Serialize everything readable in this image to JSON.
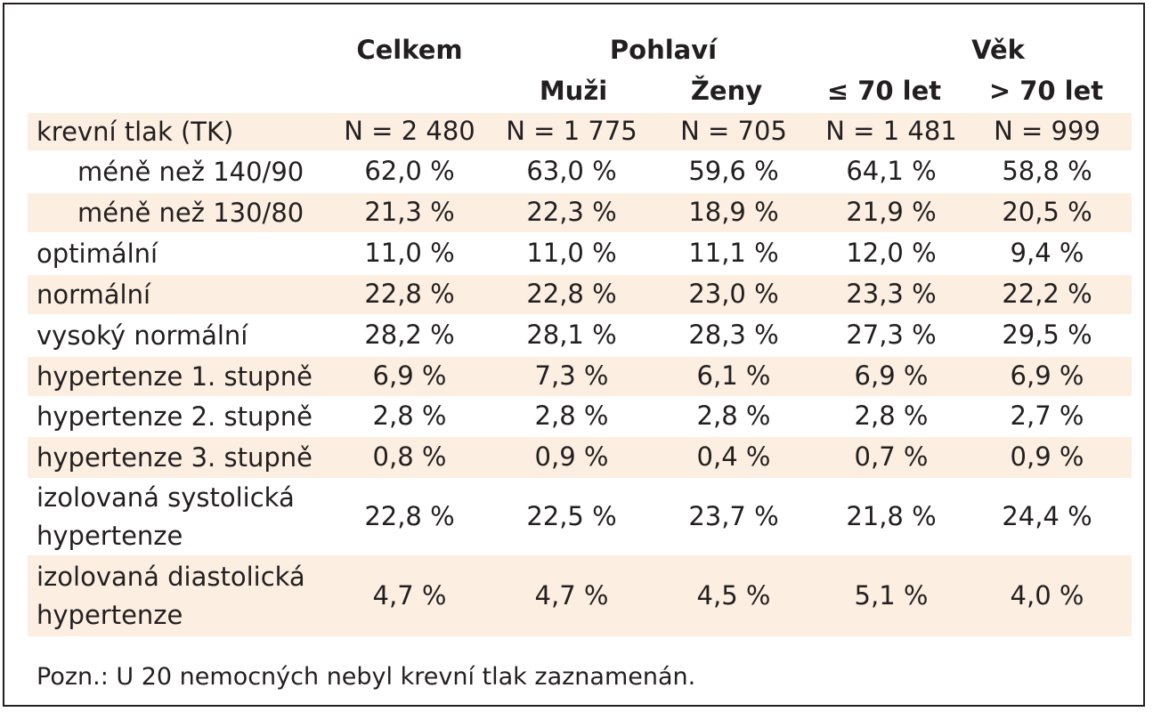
{
  "headers": {
    "celkem": "Celkem",
    "pohlavi": "Pohlaví",
    "vek": "Věk",
    "muzi": "Muži",
    "zeny": "Ženy",
    "vek_le70": "≤ 70 let",
    "vek_gt70": "> 70 let"
  },
  "rows": [
    {
      "label": "krevní tlak (TK)",
      "values": [
        "N = 2 480",
        "N = 1 775",
        "N = 705",
        "N = 1 481",
        "N = 999"
      ]
    },
    {
      "label": "méně než 140/90",
      "values": [
        "62,0 %",
        "63,0 %",
        "59,6 %",
        "64,1 %",
        "58,8 %"
      ]
    },
    {
      "label": "méně než 130/80",
      "values": [
        "21,3 %",
        "22,3 %",
        "18,9 %",
        "21,9 %",
        "20,5 %"
      ]
    },
    {
      "label": "optimální",
      "values": [
        "11,0 %",
        "11,0 %",
        "11,1 %",
        "12,0 %",
        "9,4 %"
      ]
    },
    {
      "label": "normální",
      "values": [
        "22,8 %",
        "22,8 %",
        "23,0 %",
        "23,3 %",
        "22,2 %"
      ]
    },
    {
      "label": "vysoký normální",
      "values": [
        "28,2 %",
        "28,1 %",
        "28,3 %",
        "27,3 %",
        "29,5 %"
      ]
    },
    {
      "label": "hypertenze 1. stupně",
      "values": [
        "6,9 %",
        "7,3 %",
        "6,1 %",
        "6,9 %",
        "6,9 %"
      ]
    },
    {
      "label": "hypertenze 2. stupně",
      "values": [
        "2,8 %",
        "2,8 %",
        "2,8 %",
        "2,8 %",
        "2,7 %"
      ]
    },
    {
      "label": "hypertenze 3. stupně",
      "values": [
        "0,8 %",
        "0,9 %",
        "0,4 %",
        "0,7 %",
        "0,9 %"
      ]
    },
    {
      "label": "izolovaná systolická hypertenze",
      "values": [
        "22,8 %",
        "22,5 %",
        "23,7 %",
        "21,8 %",
        "24,4 %"
      ]
    },
    {
      "label": "izolovaná diastolická hypertenze",
      "values": [
        "4,7 %",
        "4,7 %",
        "4,5 %",
        "5,1 %",
        "4,0 %"
      ]
    }
  ],
  "note": "Pozn.: U 20 nemocných nebyl krevní tlak zaznamenán.",
  "colors": {
    "row_shade": "#fcefe2",
    "text": "#231f20",
    "border": "#231f20"
  }
}
